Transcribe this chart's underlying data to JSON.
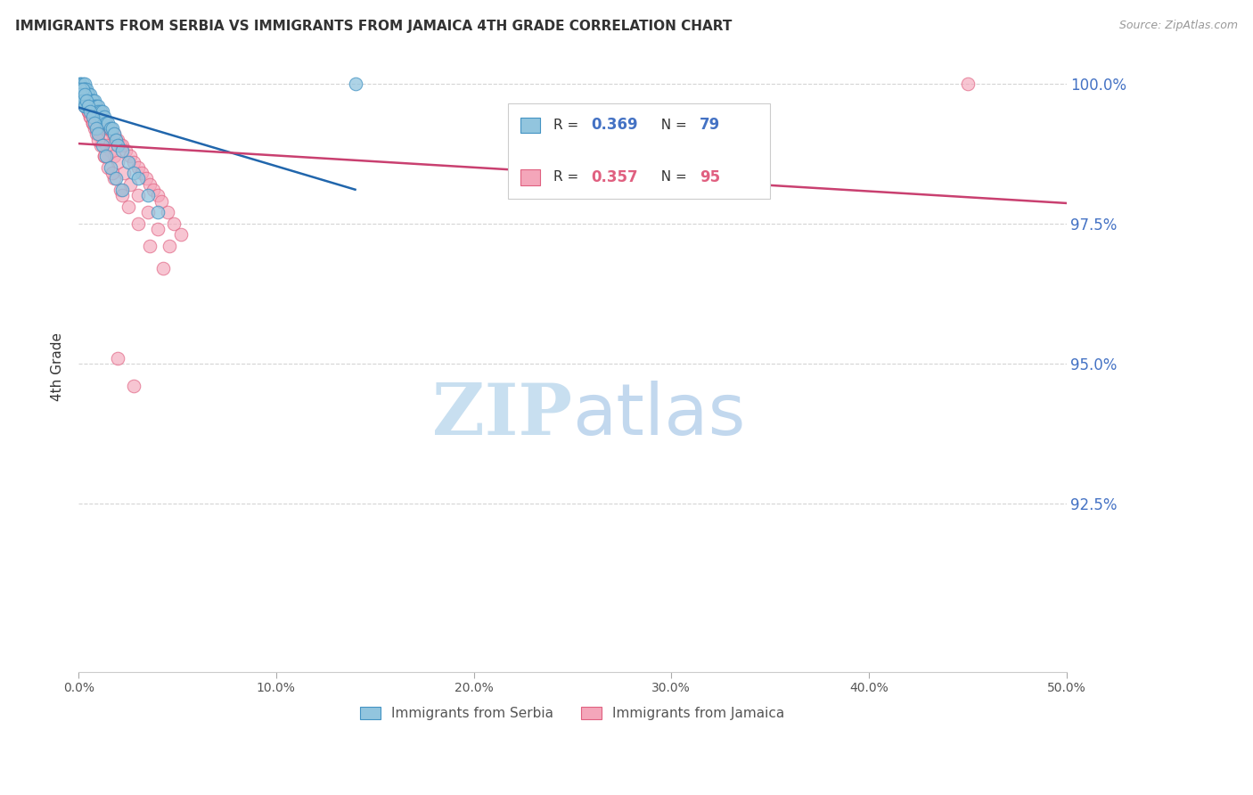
{
  "title": "IMMIGRANTS FROM SERBIA VS IMMIGRANTS FROM JAMAICA 4TH GRADE CORRELATION CHART",
  "source": "Source: ZipAtlas.com",
  "ylabel_label": "4th Grade",
  "xlim": [
    0.0,
    0.5
  ],
  "ylim": [
    0.895,
    1.004
  ],
  "yticks": [
    0.925,
    0.95,
    0.975,
    1.0
  ],
  "ytick_labels": [
    "92.5%",
    "95.0%",
    "97.5%",
    "100.0%"
  ],
  "xticks": [
    0.0,
    0.1,
    0.2,
    0.3,
    0.4,
    0.5
  ],
  "xtick_labels": [
    "0.0%",
    "10.0%",
    "20.0%",
    "30.0%",
    "40.0%",
    "50.0%"
  ],
  "serbia_color": "#92c5de",
  "jamaica_color": "#f4a6ba",
  "serbia_edge_color": "#4393c3",
  "jamaica_edge_color": "#e06080",
  "trendline_serbia_color": "#2166ac",
  "trendline_jamaica_color": "#c94070",
  "watermark_zip_color": "#c8dff0",
  "watermark_atlas_color": "#a8c8e8",
  "background_color": "#ffffff",
  "grid_color": "#d0d0d0",
  "serbia_x": [
    0.001,
    0.001,
    0.001,
    0.001,
    0.001,
    0.002,
    0.002,
    0.002,
    0.002,
    0.002,
    0.002,
    0.002,
    0.003,
    0.003,
    0.003,
    0.003,
    0.003,
    0.003,
    0.003,
    0.004,
    0.004,
    0.004,
    0.004,
    0.004,
    0.005,
    0.005,
    0.005,
    0.005,
    0.006,
    0.006,
    0.006,
    0.006,
    0.007,
    0.007,
    0.007,
    0.007,
    0.008,
    0.008,
    0.008,
    0.009,
    0.009,
    0.01,
    0.01,
    0.011,
    0.011,
    0.012,
    0.013,
    0.014,
    0.015,
    0.016,
    0.017,
    0.018,
    0.019,
    0.02,
    0.022,
    0.025,
    0.028,
    0.03,
    0.035,
    0.04,
    0.001,
    0.001,
    0.002,
    0.002,
    0.003,
    0.003,
    0.004,
    0.005,
    0.006,
    0.007,
    0.008,
    0.009,
    0.01,
    0.012,
    0.014,
    0.016,
    0.019,
    0.022,
    0.14
  ],
  "serbia_y": [
    1.0,
    1.0,
    0.999,
    0.999,
    0.998,
    1.0,
    0.999,
    0.999,
    0.998,
    0.998,
    0.997,
    0.997,
    1.0,
    0.999,
    0.999,
    0.998,
    0.997,
    0.997,
    0.996,
    0.999,
    0.998,
    0.998,
    0.997,
    0.996,
    0.998,
    0.998,
    0.997,
    0.996,
    0.998,
    0.997,
    0.997,
    0.996,
    0.997,
    0.997,
    0.996,
    0.995,
    0.997,
    0.996,
    0.995,
    0.996,
    0.995,
    0.996,
    0.995,
    0.995,
    0.994,
    0.995,
    0.994,
    0.993,
    0.993,
    0.992,
    0.992,
    0.991,
    0.99,
    0.989,
    0.988,
    0.986,
    0.984,
    0.983,
    0.98,
    0.977,
    0.999,
    0.998,
    0.999,
    0.997,
    0.998,
    0.996,
    0.997,
    0.996,
    0.995,
    0.994,
    0.993,
    0.992,
    0.991,
    0.989,
    0.987,
    0.985,
    0.983,
    0.981,
    1.0
  ],
  "jamaica_x": [
    0.001,
    0.001,
    0.002,
    0.002,
    0.002,
    0.003,
    0.003,
    0.003,
    0.004,
    0.004,
    0.004,
    0.005,
    0.005,
    0.005,
    0.006,
    0.006,
    0.007,
    0.007,
    0.008,
    0.008,
    0.009,
    0.009,
    0.01,
    0.01,
    0.011,
    0.011,
    0.012,
    0.013,
    0.014,
    0.015,
    0.016,
    0.017,
    0.018,
    0.019,
    0.02,
    0.021,
    0.022,
    0.024,
    0.026,
    0.028,
    0.03,
    0.032,
    0.034,
    0.036,
    0.038,
    0.04,
    0.042,
    0.045,
    0.048,
    0.052,
    0.002,
    0.003,
    0.004,
    0.005,
    0.006,
    0.007,
    0.008,
    0.009,
    0.01,
    0.012,
    0.014,
    0.016,
    0.018,
    0.02,
    0.023,
    0.026,
    0.03,
    0.035,
    0.04,
    0.046,
    0.003,
    0.004,
    0.005,
    0.006,
    0.007,
    0.008,
    0.009,
    0.011,
    0.013,
    0.015,
    0.018,
    0.021,
    0.025,
    0.03,
    0.036,
    0.043,
    0.003,
    0.005,
    0.007,
    0.01,
    0.013,
    0.017,
    0.022,
    0.45,
    0.02,
    0.028
  ],
  "jamaica_y": [
    0.999,
    0.998,
    0.999,
    0.998,
    0.997,
    0.998,
    0.997,
    0.996,
    0.998,
    0.997,
    0.996,
    0.998,
    0.997,
    0.996,
    0.997,
    0.996,
    0.997,
    0.996,
    0.996,
    0.995,
    0.996,
    0.995,
    0.995,
    0.994,
    0.995,
    0.994,
    0.994,
    0.993,
    0.993,
    0.992,
    0.992,
    0.991,
    0.991,
    0.99,
    0.99,
    0.989,
    0.989,
    0.988,
    0.987,
    0.986,
    0.985,
    0.984,
    0.983,
    0.982,
    0.981,
    0.98,
    0.979,
    0.977,
    0.975,
    0.973,
    0.998,
    0.997,
    0.996,
    0.995,
    0.994,
    0.993,
    0.993,
    0.992,
    0.991,
    0.99,
    0.989,
    0.988,
    0.987,
    0.986,
    0.984,
    0.982,
    0.98,
    0.977,
    0.974,
    0.971,
    0.997,
    0.996,
    0.995,
    0.994,
    0.993,
    0.992,
    0.991,
    0.989,
    0.987,
    0.985,
    0.983,
    0.981,
    0.978,
    0.975,
    0.971,
    0.967,
    0.997,
    0.995,
    0.993,
    0.99,
    0.987,
    0.984,
    0.98,
    1.0,
    0.951,
    0.946
  ]
}
